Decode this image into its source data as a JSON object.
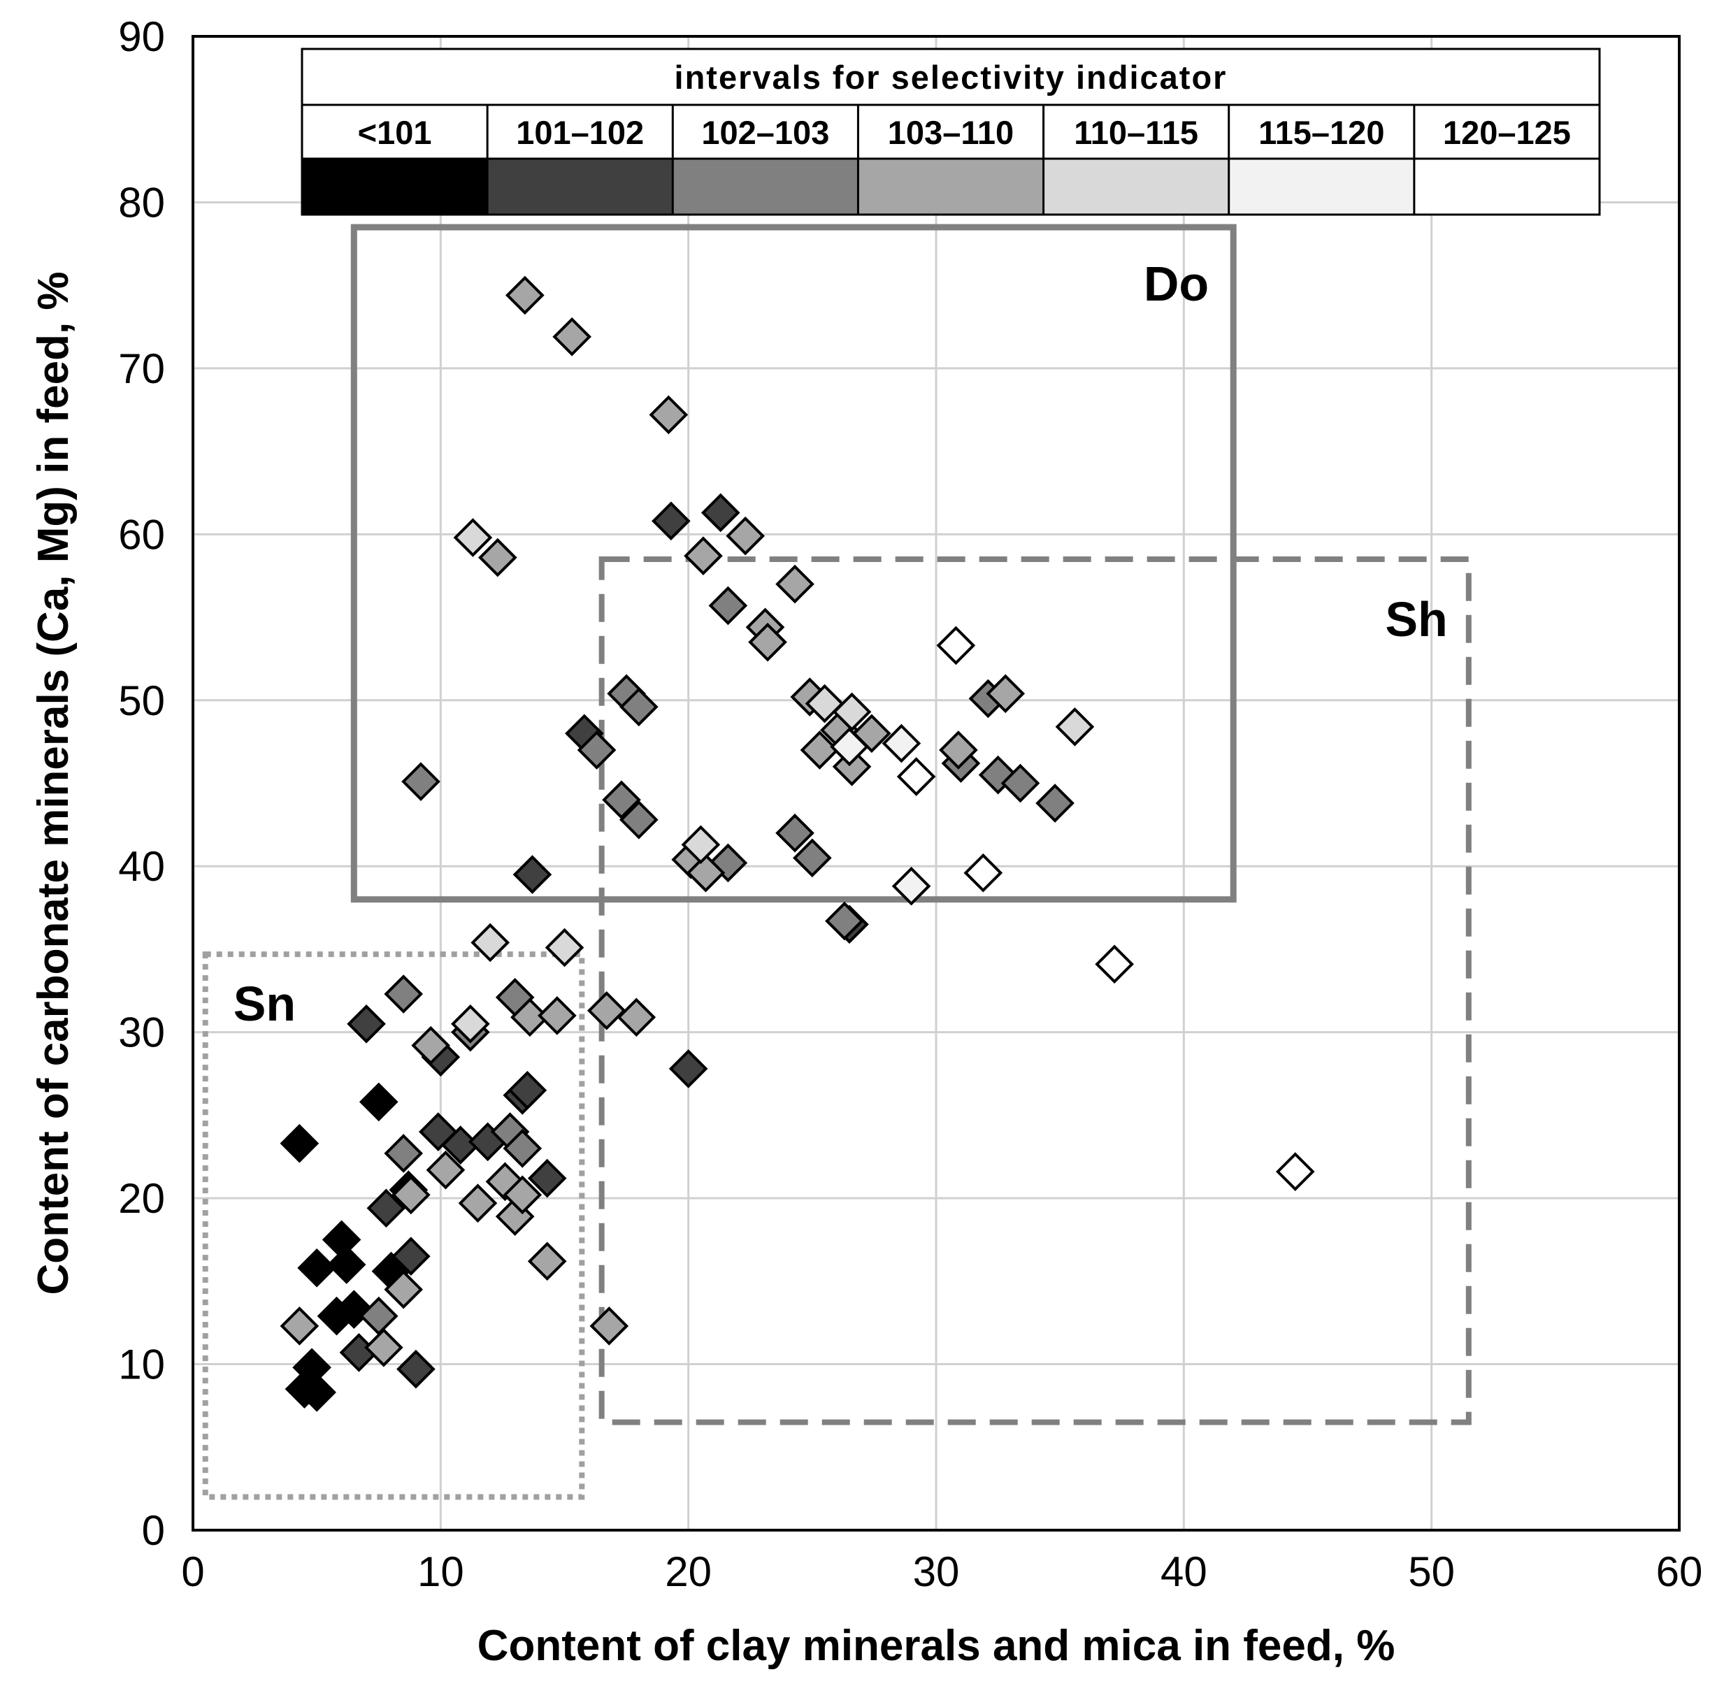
{
  "chart_data": {
    "type": "scatter",
    "xlabel": "Content of clay minerals and mica in feed, %",
    "ylabel": "Content of carbonate minerals (Ca, Mg) in feed, %",
    "xlim": [
      0,
      60
    ],
    "ylim": [
      0,
      90
    ],
    "xticks": [
      "0",
      "10",
      "20",
      "30",
      "40",
      "50",
      "60"
    ],
    "yticks": [
      "0",
      "10",
      "20",
      "30",
      "40",
      "50",
      "60",
      "70",
      "80",
      "90"
    ],
    "grid": true,
    "legend": {
      "title": "intervals for selectivity indicator",
      "placement": "top",
      "categories": [
        {
          "label": "<101",
          "color": "#000000"
        },
        {
          "label": "101–102",
          "color": "#404040"
        },
        {
          "label": "102–103",
          "color": "#808080"
        },
        {
          "label": "103–110",
          "color": "#a6a6a6"
        },
        {
          "label": "110–115",
          "color": "#d9d9d9"
        },
        {
          "label": "115–120",
          "color": "#f2f2f2"
        },
        {
          "label": "120–125",
          "color": "#ffffff"
        }
      ]
    },
    "regions": [
      {
        "label": "Do",
        "style": "solid",
        "x": [
          6.5,
          42
        ],
        "y": [
          38,
          78.5
        ]
      },
      {
        "label": "Sh",
        "style": "dashed",
        "x": [
          16.5,
          51.5
        ],
        "y": [
          6.5,
          58.5
        ]
      },
      {
        "label": "Sn",
        "style": "dotted",
        "x": [
          0.5,
          15.7
        ],
        "y": [
          2,
          34.7
        ]
      }
    ],
    "points": [
      {
        "x": 4.3,
        "y": 23.3,
        "c": 0
      },
      {
        "x": 4.5,
        "y": 8.5,
        "c": 0
      },
      {
        "x": 4.8,
        "y": 9.8,
        "c": 0
      },
      {
        "x": 5.0,
        "y": 8.3,
        "c": 0
      },
      {
        "x": 5.0,
        "y": 15.8,
        "c": 0
      },
      {
        "x": 5.8,
        "y": 12.9,
        "c": 0
      },
      {
        "x": 6.0,
        "y": 17.5,
        "c": 0
      },
      {
        "x": 6.2,
        "y": 16.0,
        "c": 0
      },
      {
        "x": 6.5,
        "y": 13.3,
        "c": 0
      },
      {
        "x": 7.5,
        "y": 25.8,
        "c": 0
      },
      {
        "x": 8.0,
        "y": 15.6,
        "c": 0
      },
      {
        "x": 8.7,
        "y": 20.5,
        "c": 0
      },
      {
        "x": 7.0,
        "y": 30.5,
        "c": 1
      },
      {
        "x": 6.7,
        "y": 10.7,
        "c": 1
      },
      {
        "x": 7.8,
        "y": 19.4,
        "c": 1
      },
      {
        "x": 8.8,
        "y": 16.5,
        "c": 1
      },
      {
        "x": 9.0,
        "y": 9.7,
        "c": 1
      },
      {
        "x": 10.0,
        "y": 28.5,
        "c": 1
      },
      {
        "x": 9.9,
        "y": 24.0,
        "c": 1
      },
      {
        "x": 10.8,
        "y": 23.2,
        "c": 1
      },
      {
        "x": 11.9,
        "y": 23.4,
        "c": 1
      },
      {
        "x": 13.3,
        "y": 26.2,
        "c": 1
      },
      {
        "x": 13.5,
        "y": 26.5,
        "c": 1
      },
      {
        "x": 14.3,
        "y": 21.2,
        "c": 1
      },
      {
        "x": 13.7,
        "y": 39.5,
        "c": 1
      },
      {
        "x": 15.8,
        "y": 48.0,
        "c": 1
      },
      {
        "x": 19.3,
        "y": 60.8,
        "c": 1
      },
      {
        "x": 21.3,
        "y": 61.3,
        "c": 1
      },
      {
        "x": 20.0,
        "y": 27.8,
        "c": 1
      },
      {
        "x": 26.5,
        "y": 36.5,
        "c": 1
      },
      {
        "x": 8.5,
        "y": 32.3,
        "c": 2
      },
      {
        "x": 7.5,
        "y": 12.9,
        "c": 2
      },
      {
        "x": 8.5,
        "y": 22.7,
        "c": 2
      },
      {
        "x": 9.2,
        "y": 45.1,
        "c": 2
      },
      {
        "x": 11.2,
        "y": 30.0,
        "c": 2
      },
      {
        "x": 12.8,
        "y": 24.0,
        "c": 2
      },
      {
        "x": 13.0,
        "y": 32.1,
        "c": 2
      },
      {
        "x": 13.3,
        "y": 23.0,
        "c": 2
      },
      {
        "x": 16.3,
        "y": 47.0,
        "c": 2
      },
      {
        "x": 17.3,
        "y": 44.0,
        "c": 2
      },
      {
        "x": 18.0,
        "y": 42.8,
        "c": 2
      },
      {
        "x": 17.5,
        "y": 50.4,
        "c": 2
      },
      {
        "x": 18.0,
        "y": 49.6,
        "c": 2
      },
      {
        "x": 21.6,
        "y": 55.7,
        "c": 2
      },
      {
        "x": 21.6,
        "y": 40.2,
        "c": 2
      },
      {
        "x": 24.3,
        "y": 42.0,
        "c": 2
      },
      {
        "x": 25.0,
        "y": 40.5,
        "c": 2
      },
      {
        "x": 26.3,
        "y": 36.7,
        "c": 2
      },
      {
        "x": 31.0,
        "y": 46.2,
        "c": 2
      },
      {
        "x": 32.5,
        "y": 45.5,
        "c": 2
      },
      {
        "x": 33.4,
        "y": 45.0,
        "c": 2
      },
      {
        "x": 34.8,
        "y": 43.8,
        "c": 2
      },
      {
        "x": 32.1,
        "y": 50.1,
        "c": 2
      },
      {
        "x": 4.3,
        "y": 12.3,
        "c": 3
      },
      {
        "x": 7.7,
        "y": 11.0,
        "c": 3
      },
      {
        "x": 8.5,
        "y": 14.5,
        "c": 3
      },
      {
        "x": 8.8,
        "y": 20.2,
        "c": 3
      },
      {
        "x": 9.6,
        "y": 29.2,
        "c": 3
      },
      {
        "x": 10.2,
        "y": 21.7,
        "c": 3
      },
      {
        "x": 11.5,
        "y": 19.7,
        "c": 3
      },
      {
        "x": 12.3,
        "y": 58.6,
        "c": 3
      },
      {
        "x": 12.6,
        "y": 21.0,
        "c": 3
      },
      {
        "x": 13.0,
        "y": 18.9,
        "c": 3
      },
      {
        "x": 13.3,
        "y": 20.2,
        "c": 3
      },
      {
        "x": 13.4,
        "y": 74.4,
        "c": 3
      },
      {
        "x": 13.6,
        "y": 30.9,
        "c": 3
      },
      {
        "x": 14.3,
        "y": 16.2,
        "c": 3
      },
      {
        "x": 14.7,
        "y": 31.0,
        "c": 3
      },
      {
        "x": 15.3,
        "y": 71.9,
        "c": 3
      },
      {
        "x": 16.7,
        "y": 31.3,
        "c": 3
      },
      {
        "x": 16.8,
        "y": 12.3,
        "c": 3
      },
      {
        "x": 17.9,
        "y": 30.9,
        "c": 3
      },
      {
        "x": 19.2,
        "y": 67.2,
        "c": 3
      },
      {
        "x": 20.6,
        "y": 58.7,
        "c": 3
      },
      {
        "x": 22.3,
        "y": 59.9,
        "c": 3
      },
      {
        "x": 23.1,
        "y": 54.4,
        "c": 3
      },
      {
        "x": 23.2,
        "y": 53.5,
        "c": 3
      },
      {
        "x": 24.3,
        "y": 57.0,
        "c": 3
      },
      {
        "x": 24.9,
        "y": 50.2,
        "c": 3
      },
      {
        "x": 25.3,
        "y": 47.0,
        "c": 3
      },
      {
        "x": 26.1,
        "y": 48.2,
        "c": 3
      },
      {
        "x": 26.6,
        "y": 46.0,
        "c": 3
      },
      {
        "x": 27.4,
        "y": 48.0,
        "c": 3
      },
      {
        "x": 20.1,
        "y": 40.4,
        "c": 3
      },
      {
        "x": 20.7,
        "y": 39.6,
        "c": 3
      },
      {
        "x": 30.9,
        "y": 47.0,
        "c": 3
      },
      {
        "x": 32.8,
        "y": 50.4,
        "c": 3
      },
      {
        "x": 11.3,
        "y": 59.8,
        "c": 4
      },
      {
        "x": 11.2,
        "y": 30.5,
        "c": 4
      },
      {
        "x": 12.0,
        "y": 35.4,
        "c": 4
      },
      {
        "x": 15.0,
        "y": 35.1,
        "c": 4
      },
      {
        "x": 20.5,
        "y": 41.3,
        "c": 4
      },
      {
        "x": 25.5,
        "y": 49.8,
        "c": 4
      },
      {
        "x": 26.6,
        "y": 49.3,
        "c": 4
      },
      {
        "x": 35.6,
        "y": 48.4,
        "c": 4
      },
      {
        "x": 26.5,
        "y": 47.2,
        "c": 5
      },
      {
        "x": 28.6,
        "y": 47.4,
        "c": 5
      },
      {
        "x": 29.0,
        "y": 38.8,
        "c": 5
      },
      {
        "x": 29.2,
        "y": 45.4,
        "c": 6
      },
      {
        "x": 30.8,
        "y": 53.3,
        "c": 6
      },
      {
        "x": 31.9,
        "y": 39.6,
        "c": 6
      },
      {
        "x": 37.2,
        "y": 34.1,
        "c": 6
      },
      {
        "x": 44.5,
        "y": 21.6,
        "c": 6
      }
    ]
  }
}
